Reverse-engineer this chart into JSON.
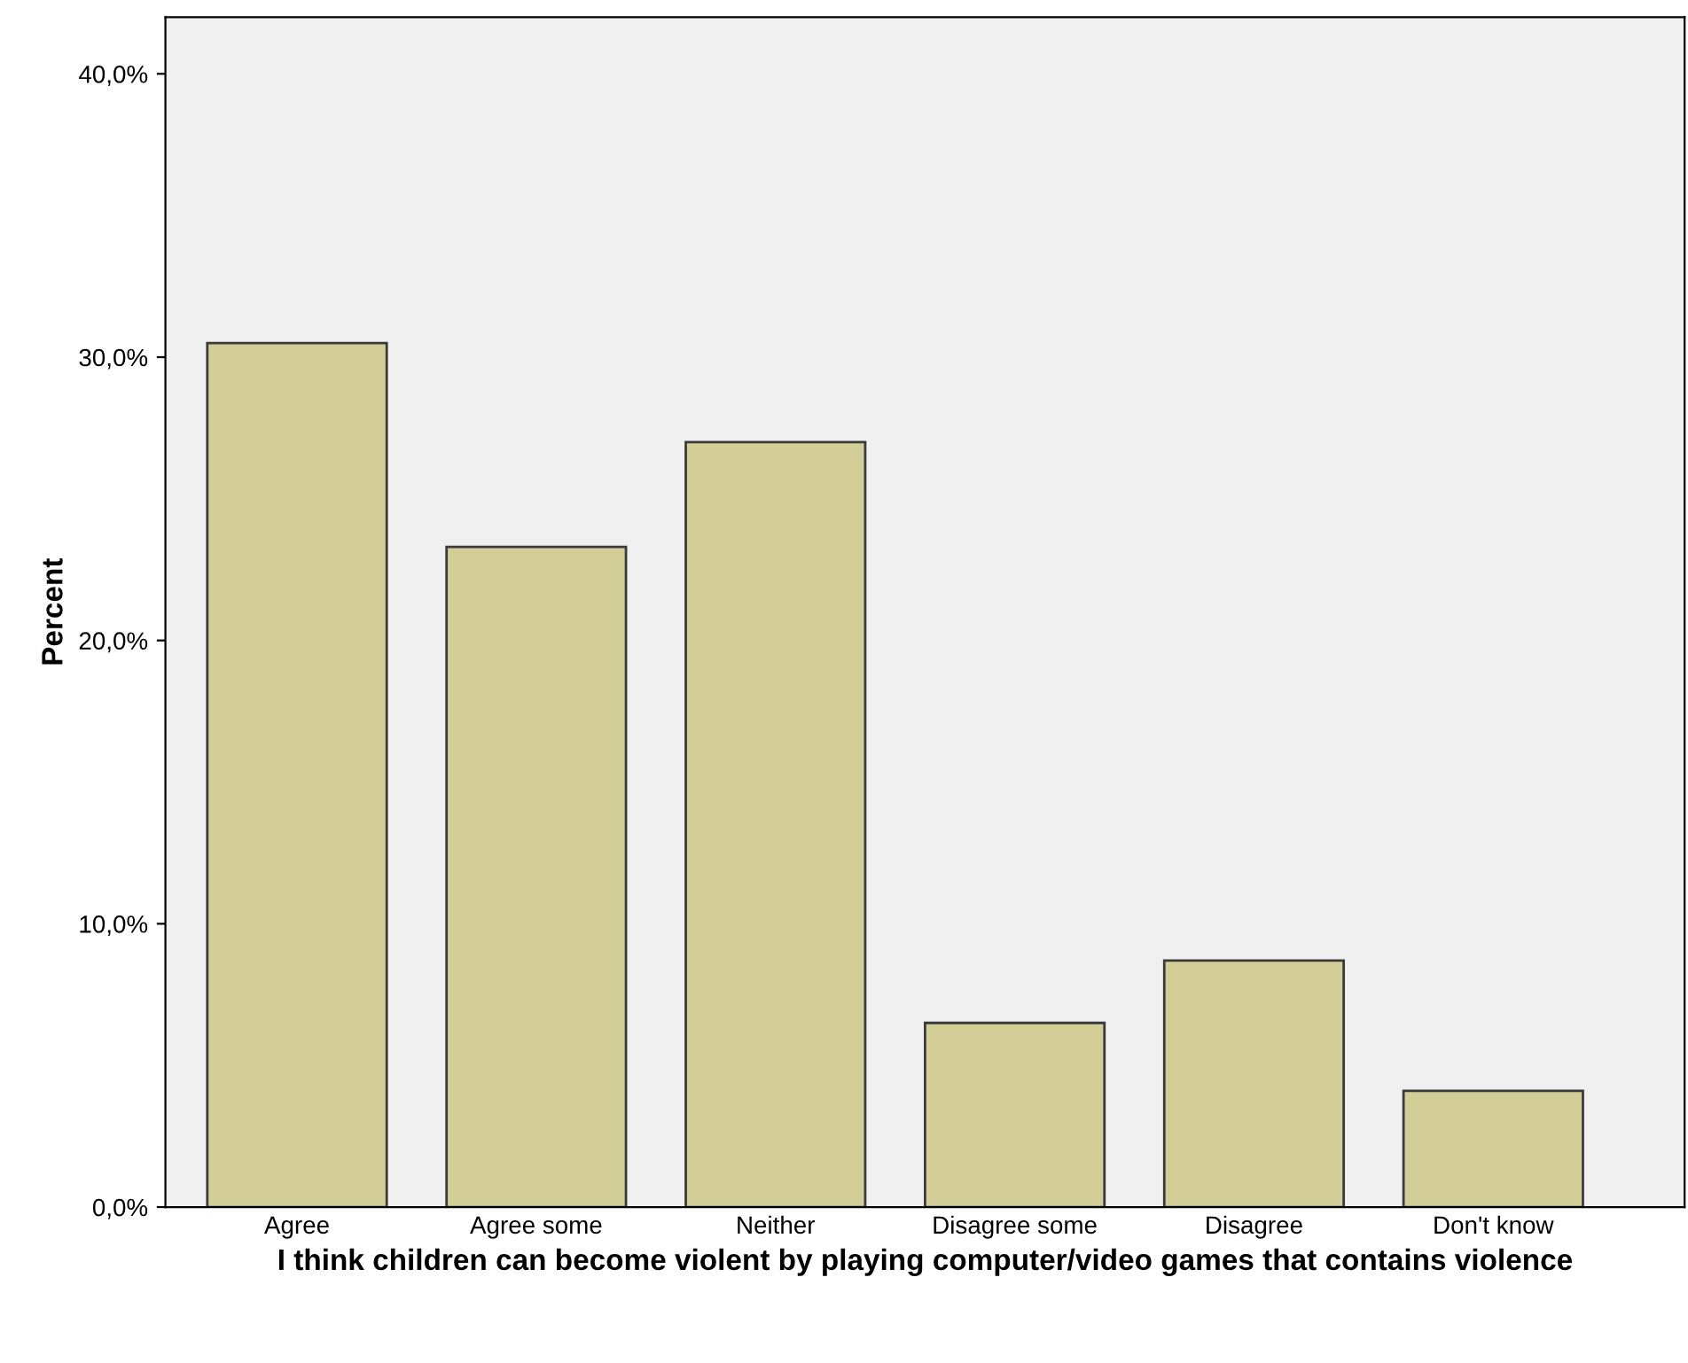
{
  "chart_data": {
    "type": "bar",
    "xlabel": "I think children can become violent by playing computer/video games that contains violence",
    "ylabel": "Percent",
    "categories": [
      "Agree",
      "Agree some",
      "Neither",
      "Disagree some",
      "Disagree",
      "Don't know"
    ],
    "values": [
      30.5,
      23.3,
      27.0,
      6.5,
      8.7,
      4.1
    ],
    "color": "#d3ce98",
    "ylim": [
      0,
      42
    ],
    "yticks": [
      {
        "value": 0,
        "label": "0,0%"
      },
      {
        "value": 10,
        "label": "10,0%"
      },
      {
        "value": 20,
        "label": "20,0%"
      },
      {
        "value": 30,
        "label": "30,0%"
      },
      {
        "value": 40,
        "label": "40,0%"
      }
    ],
    "grid": false,
    "legend": false
  }
}
